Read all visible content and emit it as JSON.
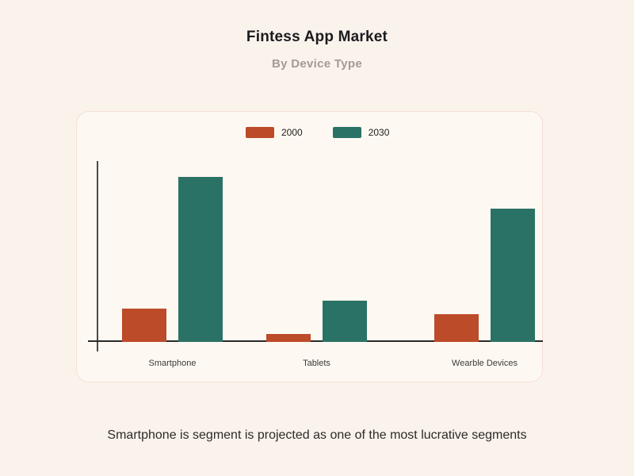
{
  "page": {
    "background": "#FAF3EC",
    "title": "Fintess App Market",
    "subtitle": "By Device Type",
    "caption": "Smartphone is segment is projected as one of the most lucrative segments"
  },
  "card": {
    "background": "#FDF8F2",
    "border_color": "#F6DFD6"
  },
  "colors": {
    "series_2000": "#BC4B2A",
    "series_2030": "#2A7265",
    "axis": "#3A3A38",
    "title_text": "#1B1B1F",
    "subtitle_text": "#A39B93",
    "caption_text": "#2E2A26"
  },
  "chart_data": {
    "type": "bar",
    "title": "Fintess App Market",
    "subtitle": "By Device Type",
    "categories": [
      "Smartphone",
      "Tablets",
      "Wearble Devices"
    ],
    "series": [
      {
        "name": "2000",
        "color": "#BC4B2A",
        "values": [
          20,
          5,
          17
        ]
      },
      {
        "name": "2030",
        "color": "#2A7265",
        "values": [
          100,
          25,
          81
        ]
      }
    ],
    "xlabel": "",
    "ylabel": "",
    "ylim": [
      0,
      100
    ],
    "value_note": "no y-axis tick values shown in image; values are relative units with tallest bar (Smartphone 2030) = 100",
    "grid": false,
    "legend_position": "top-center",
    "annotation": "Smartphone is segment is projected as one of the most lucrative segments"
  }
}
